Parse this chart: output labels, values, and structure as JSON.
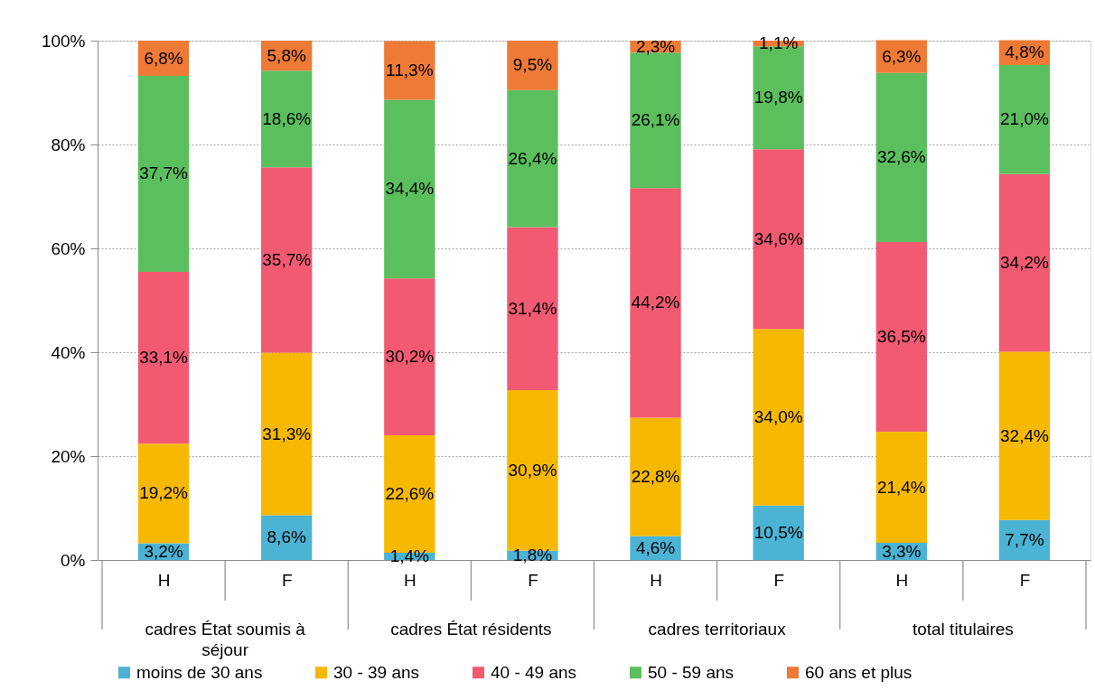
{
  "chart_data": {
    "type": "bar",
    "stacked": true,
    "categories": [
      "H",
      "F",
      "H",
      "F",
      "H",
      "F",
      "H",
      "F"
    ],
    "annotations": [
      "cadres État soumis à séjour",
      "cadres État résidents",
      "cadres territoriaux",
      "total titulaires"
    ],
    "ylim": [
      0,
      100
    ],
    "yticks": [
      {
        "value": 0,
        "label": "0%"
      },
      {
        "value": 20,
        "label": "20%"
      },
      {
        "value": 40,
        "label": "40%"
      },
      {
        "value": 60,
        "label": "60%"
      },
      {
        "value": 80,
        "label": "80%"
      },
      {
        "value": 100,
        "label": "100%"
      }
    ],
    "grid": "y",
    "legend": "bottom",
    "series": [
      {
        "name": "moins de 30 ans",
        "color": "#4bb3d3",
        "values": [
          3.2,
          8.6,
          1.4,
          1.8,
          4.6,
          10.5,
          3.3,
          7.7
        ],
        "value_labels": [
          "3,2%",
          "8,6%",
          "1,4%",
          "1,8%",
          "4,6%",
          "10,5%",
          "3,3%",
          "7,7%"
        ]
      },
      {
        "name": "30 - 39 ans",
        "color": "#f6b800",
        "values": [
          19.2,
          31.3,
          22.6,
          30.9,
          22.8,
          34.0,
          21.4,
          32.4
        ],
        "value_labels": [
          "19,2%",
          "31,3%",
          "22,6%",
          "30,9%",
          "22,8%",
          "34,0%",
          "21,4%",
          "32,4%"
        ]
      },
      {
        "name": "40 - 49 ans",
        "color": "#f25a72",
        "values": [
          33.1,
          35.7,
          30.2,
          31.4,
          44.2,
          34.6,
          36.5,
          34.2
        ],
        "value_labels": [
          "33,1%",
          "35,7%",
          "30,2%",
          "31,4%",
          "44,2%",
          "34,6%",
          "36,5%",
          "34,2%"
        ]
      },
      {
        "name": "50 - 59 ans",
        "color": "#5bbf5e",
        "values": [
          37.7,
          18.6,
          34.4,
          26.4,
          26.1,
          19.8,
          32.6,
          21.0
        ],
        "value_labels": [
          "37,7%",
          "18,6%",
          "34,4%",
          "26,4%",
          "26,1%",
          "19,8%",
          "32,6%",
          "21,0%"
        ]
      },
      {
        "name": "60 ans et plus",
        "color": "#ee7a36",
        "values": [
          6.8,
          5.8,
          11.3,
          9.5,
          2.3,
          1.1,
          6.3,
          4.8
        ],
        "value_labels": [
          "6,8%",
          "5,8%",
          "11,3%",
          "9,5%",
          "2,3%",
          "1,1%",
          "6,3%",
          "4,8%"
        ]
      }
    ]
  }
}
